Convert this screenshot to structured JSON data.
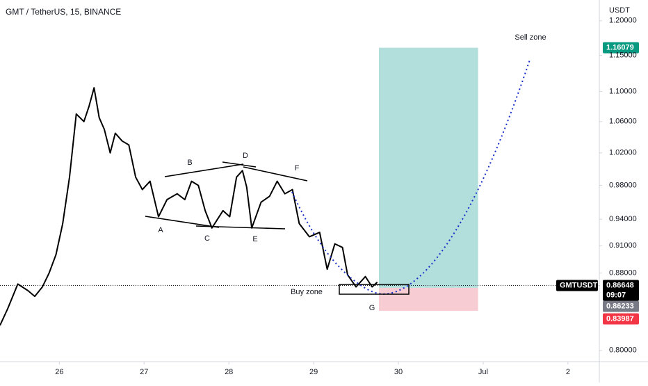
{
  "chart_data": {
    "type": "line",
    "title": "GMT / TetherUS, 15, BINANCE",
    "y_axis_label": "USDT",
    "log_scale": true,
    "xlim": [
      25.3,
      32.37
    ],
    "xticks": [
      26,
      27,
      28,
      29,
      30,
      {
        "value": 31,
        "label": "Jul"
      },
      {
        "value": 32,
        "label": "2"
      }
    ],
    "ylim": [
      0.789,
      1.231
    ],
    "yticks": [
      {
        "value": 0.8,
        "label": "0.80000"
      },
      {
        "value": 0.88,
        "label": "0.88000"
      },
      {
        "value": 0.91,
        "label": "0.91000"
      },
      {
        "value": 0.94,
        "label": "0.94000"
      },
      {
        "value": 0.98,
        "label": "0.98000"
      },
      {
        "value": 1.02,
        "label": "1.02000"
      },
      {
        "value": 1.06,
        "label": "1.06000"
      },
      {
        "value": 1.1,
        "label": "1.10000"
      },
      {
        "value": 1.15,
        "label": "1.15000"
      },
      {
        "value": 1.2,
        "label": "1.20000"
      }
    ],
    "x": [
      25.3,
      25.39,
      25.51,
      25.63,
      25.71,
      25.8,
      25.88,
      25.96,
      26.04,
      26.12,
      26.2,
      26.29,
      26.35,
      26.41,
      26.47,
      26.53,
      26.6,
      26.66,
      26.74,
      26.82,
      26.9,
      26.98,
      27.07,
      27.17,
      27.27,
      27.39,
      27.48,
      27.56,
      27.64,
      27.72,
      27.8,
      27.93,
      28.01,
      28.09,
      28.16,
      28.21,
      28.27,
      28.38,
      28.48,
      28.57,
      28.66,
      28.75,
      28.83,
      28.95,
      29.07,
      29.16,
      29.25,
      29.34,
      29.4,
      29.5,
      29.61,
      29.69,
      29.75
    ],
    "series": [
      {
        "name": "GMTUSDT",
        "color": "#000000",
        "values": [
          0.825,
          0.842,
          0.868,
          0.861,
          0.855,
          0.865,
          0.88,
          0.9,
          0.935,
          0.99,
          1.07,
          1.06,
          1.08,
          1.105,
          1.065,
          1.05,
          1.02,
          1.045,
          1.035,
          1.03,
          0.99,
          0.975,
          0.985,
          0.943,
          0.963,
          0.97,
          0.963,
          0.985,
          0.98,
          0.95,
          0.93,
          0.95,
          0.943,
          0.99,
          0.998,
          0.978,
          0.93,
          0.96,
          0.967,
          0.985,
          0.97,
          0.975,
          0.935,
          0.92,
          0.925,
          0.884,
          0.912,
          0.908,
          0.878,
          0.865,
          0.876,
          0.865,
          0.87
        ]
      }
    ],
    "position": {
      "x": [
        29.77,
        30.94
      ],
      "entry": 0.864,
      "target": {
        "value": 1.16079,
        "label": "1.16079"
      },
      "stop": {
        "value": 0.83987,
        "label": "0.83987"
      },
      "profit_color": "#b2dfdb",
      "loss_color": "#f7ccd3"
    },
    "last_price": {
      "value": 0.86648,
      "label": "0.86648"
    },
    "countdown": "09:07",
    "prior_close": {
      "value": 0.86233,
      "label": "0.86233"
    },
    "annotations": [
      "A",
      "B",
      "C",
      "D",
      "E",
      "F",
      "G",
      "Buy zone",
      "Sell zone"
    ]
  }
}
